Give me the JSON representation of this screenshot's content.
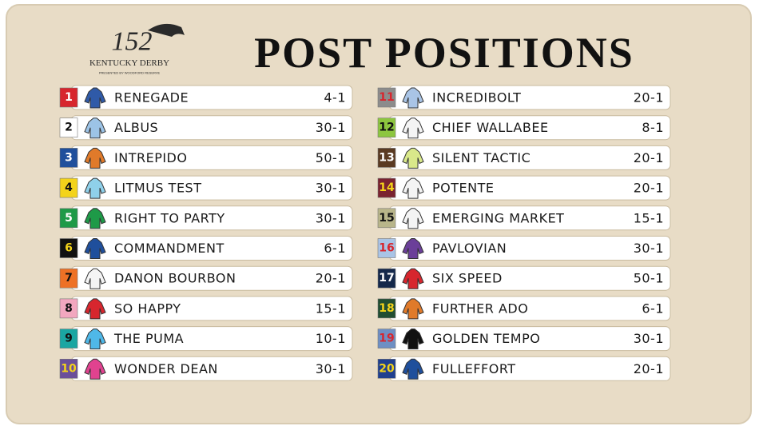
{
  "header": {
    "logo_number": "152",
    "logo_name": "KENTUCKY DERBY",
    "logo_sponsor": "PRESENTED BY WOODFORD RESERVE",
    "title": "POST POSITIONS"
  },
  "entries": [
    {
      "post": 1,
      "horse": "RENEGADE",
      "odds": "4-1",
      "box_color": "#d7262e",
      "number_color": "#ffffff",
      "silk_color": "#2f5aa8"
    },
    {
      "post": 2,
      "horse": "ALBUS",
      "odds": "30-1",
      "box_color": "#ffffff",
      "number_color": "#111111",
      "silk_color": "#9cc3e6"
    },
    {
      "post": 3,
      "horse": "INTREPIDO",
      "odds": "50-1",
      "box_color": "#1f4f9c",
      "number_color": "#ffffff",
      "silk_color": "#e07a2a"
    },
    {
      "post": 4,
      "horse": "LITMUS TEST",
      "odds": "30-1",
      "box_color": "#f3d31a",
      "number_color": "#111111",
      "silk_color": "#8fd0ea"
    },
    {
      "post": 5,
      "horse": "RIGHT TO PARTY",
      "odds": "30-1",
      "box_color": "#1e9a48",
      "number_color": "#ffffff",
      "silk_color": "#1e9a48"
    },
    {
      "post": 6,
      "horse": "COMMANDMENT",
      "odds": "6-1",
      "box_color": "#111111",
      "number_color": "#f3d31a",
      "silk_color": "#1f4f9c"
    },
    {
      "post": 7,
      "horse": "DANON BOURBON",
      "odds": "20-1",
      "box_color": "#ee7125",
      "number_color": "#111111",
      "silk_color": "#f4f4f4"
    },
    {
      "post": 8,
      "horse": "SO HAPPY",
      "odds": "15-1",
      "box_color": "#f2a7bf",
      "number_color": "#111111",
      "silk_color": "#d7262e"
    },
    {
      "post": 9,
      "horse": "THE PUMA",
      "odds": "10-1",
      "box_color": "#1aa6a2",
      "number_color": "#111111",
      "silk_color": "#4fb8e8"
    },
    {
      "post": 10,
      "horse": "WONDER DEAN",
      "odds": "30-1",
      "box_color": "#6b4f99",
      "number_color": "#f3d31a",
      "silk_color": "#e0428f"
    },
    {
      "post": 11,
      "horse": "INCREDIBOLT",
      "odds": "20-1",
      "box_color": "#8c8c8c",
      "number_color": "#d7262e",
      "silk_color": "#a9c4e6"
    },
    {
      "post": 12,
      "horse": "CHIEF WALLABEE",
      "odds": "8-1",
      "box_color": "#8dc63f",
      "number_color": "#111111",
      "silk_color": "#f4f4f4"
    },
    {
      "post": 13,
      "horse": "SILENT TACTIC",
      "odds": "20-1",
      "box_color": "#5a3a22",
      "number_color": "#ffffff",
      "silk_color": "#d9e88a"
    },
    {
      "post": 14,
      "horse": "POTENTE",
      "odds": "20-1",
      "box_color": "#7a2330",
      "number_color": "#f3d31a",
      "silk_color": "#f4f4f4"
    },
    {
      "post": 15,
      "horse": "EMERGING MARKET",
      "odds": "15-1",
      "box_color": "#b8b58a",
      "number_color": "#111111",
      "silk_color": "#f4f4f4"
    },
    {
      "post": 16,
      "horse": "PAVLOVIAN",
      "odds": "30-1",
      "box_color": "#a9c4e6",
      "number_color": "#d7262e",
      "silk_color": "#6b3f99"
    },
    {
      "post": 17,
      "horse": "SIX SPEED",
      "odds": "50-1",
      "box_color": "#14284b",
      "number_color": "#ffffff",
      "silk_color": "#d7262e"
    },
    {
      "post": 18,
      "horse": "FURTHER ADO",
      "odds": "6-1",
      "box_color": "#214d32",
      "number_color": "#f3d31a",
      "silk_color": "#e07a2a"
    },
    {
      "post": 19,
      "horse": "GOLDEN TEMPO",
      "odds": "30-1",
      "box_color": "#6e8fc4",
      "number_color": "#d7262e",
      "silk_color": "#111111"
    },
    {
      "post": 20,
      "horse": "FULLEFFORT",
      "odds": "20-1",
      "box_color": "#1f3f8f",
      "number_color": "#f3d31a",
      "silk_color": "#1f4f9c"
    }
  ]
}
